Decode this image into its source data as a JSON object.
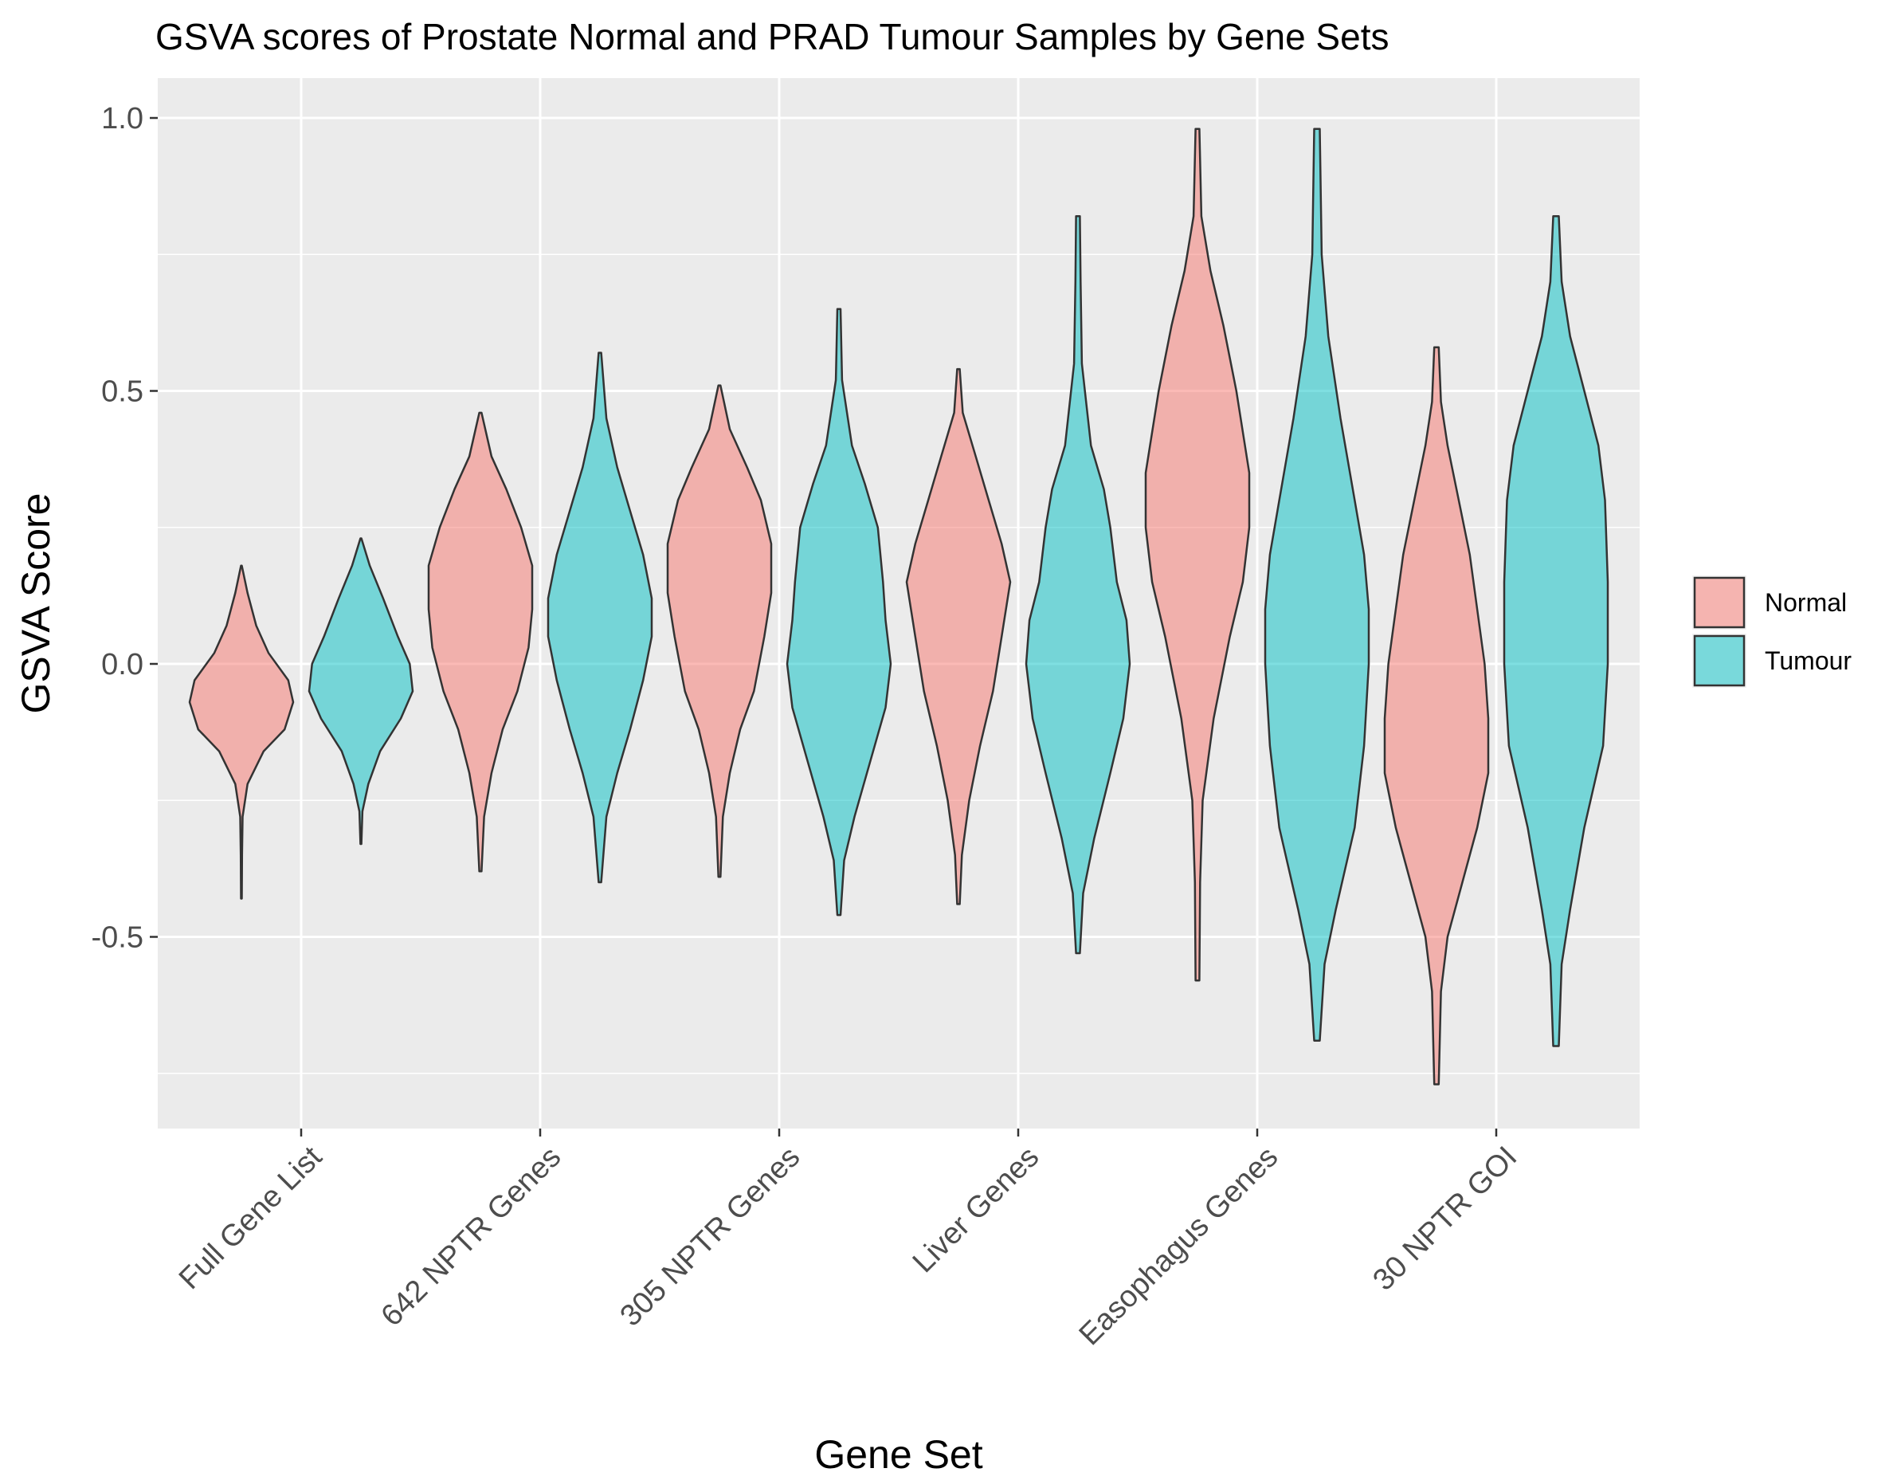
{
  "chart_data": {
    "type": "violin",
    "title": "GSVA scores of Prostate Normal and PRAD Tumour Samples by Gene Sets",
    "xlabel": "Gene Set",
    "ylabel": "GSVA Score",
    "ylim": [
      -0.86,
      1.06
    ],
    "yticks": [
      -0.5,
      0.0,
      0.5,
      1.0
    ],
    "ytick_labels": [
      "-0.5",
      "0.0",
      "0.5",
      "1.0"
    ],
    "grid": true,
    "legend_position": "right",
    "categories": [
      "Full Gene List",
      "642 NPTR Genes",
      "305 NPTR Genes",
      "Liver Genes",
      "Easophagus Genes",
      "30 NPTR GOI"
    ],
    "series": [
      {
        "name": "Normal",
        "color": "#F8766D",
        "violins": [
          {
            "min": -0.43,
            "max": 0.18,
            "profile": [
              [
                -0.43,
                0.003
              ],
              [
                -0.35,
                0.005
              ],
              [
                -0.28,
                0.01
              ],
              [
                -0.22,
                0.05
              ],
              [
                -0.16,
                0.18
              ],
              [
                -0.12,
                0.35
              ],
              [
                -0.07,
                0.42
              ],
              [
                -0.03,
                0.38
              ],
              [
                0.02,
                0.22
              ],
              [
                0.07,
                0.12
              ],
              [
                0.13,
                0.05
              ],
              [
                0.18,
                0.003
              ]
            ]
          },
          {
            "min": -0.38,
            "max": 0.46,
            "profile": [
              [
                -0.38,
                0.003
              ],
              [
                -0.28,
                0.01
              ],
              [
                -0.2,
                0.03
              ],
              [
                -0.12,
                0.06
              ],
              [
                -0.05,
                0.1
              ],
              [
                0.03,
                0.13
              ],
              [
                0.1,
                0.14
              ],
              [
                0.18,
                0.14
              ],
              [
                0.25,
                0.11
              ],
              [
                0.32,
                0.07
              ],
              [
                0.38,
                0.03
              ],
              [
                0.46,
                0.003
              ]
            ]
          },
          {
            "min": -0.39,
            "max": 0.51,
            "profile": [
              [
                -0.39,
                0.003
              ],
              [
                -0.28,
                0.01
              ],
              [
                -0.2,
                0.03
              ],
              [
                -0.12,
                0.06
              ],
              [
                -0.05,
                0.1
              ],
              [
                0.05,
                0.13
              ],
              [
                0.13,
                0.15
              ],
              [
                0.22,
                0.15
              ],
              [
                0.3,
                0.12
              ],
              [
                0.36,
                0.08
              ],
              [
                0.43,
                0.03
              ],
              [
                0.51,
                0.003
              ]
            ]
          },
          {
            "min": -0.44,
            "max": 0.54,
            "profile": [
              [
                -0.44,
                0.003
              ],
              [
                -0.35,
                0.008
              ],
              [
                -0.25,
                0.025
              ],
              [
                -0.15,
                0.05
              ],
              [
                -0.05,
                0.08
              ],
              [
                0.05,
                0.1
              ],
              [
                0.15,
                0.12
              ],
              [
                0.22,
                0.1
              ],
              [
                0.3,
                0.07
              ],
              [
                0.38,
                0.04
              ],
              [
                0.46,
                0.01
              ],
              [
                0.54,
                0.003
              ]
            ]
          },
          {
            "min": -0.58,
            "max": 0.98,
            "profile": [
              [
                -0.58,
                0.003
              ],
              [
                -0.4,
                0.004
              ],
              [
                -0.25,
                0.008
              ],
              [
                -0.1,
                0.025
              ],
              [
                0.05,
                0.05
              ],
              [
                0.15,
                0.07
              ],
              [
                0.25,
                0.08
              ],
              [
                0.35,
                0.08
              ],
              [
                0.5,
                0.06
              ],
              [
                0.62,
                0.04
              ],
              [
                0.72,
                0.02
              ],
              [
                0.82,
                0.006
              ],
              [
                0.98,
                0.003
              ]
            ]
          },
          {
            "min": -0.77,
            "max": 0.58,
            "profile": [
              [
                -0.77,
                0.003
              ],
              [
                -0.6,
                0.006
              ],
              [
                -0.5,
                0.015
              ],
              [
                -0.4,
                0.035
              ],
              [
                -0.3,
                0.055
              ],
              [
                -0.2,
                0.07
              ],
              [
                -0.1,
                0.07
              ],
              [
                0.0,
                0.065
              ],
              [
                0.1,
                0.055
              ],
              [
                0.2,
                0.045
              ],
              [
                0.3,
                0.03
              ],
              [
                0.4,
                0.015
              ],
              [
                0.48,
                0.006
              ],
              [
                0.58,
                0.003
              ]
            ]
          }
        ]
      },
      {
        "name": "Tumour",
        "color": "#00BFC4",
        "violins": [
          {
            "min": -0.33,
            "max": 0.23,
            "profile": [
              [
                -0.33,
                0.003
              ],
              [
                -0.27,
                0.01
              ],
              [
                -0.22,
                0.05
              ],
              [
                -0.16,
                0.13
              ],
              [
                -0.1,
                0.27
              ],
              [
                -0.05,
                0.35
              ],
              [
                0.0,
                0.33
              ],
              [
                0.05,
                0.25
              ],
              [
                0.12,
                0.15
              ],
              [
                0.18,
                0.06
              ],
              [
                0.23,
                0.003
              ]
            ]
          },
          {
            "min": -0.4,
            "max": 0.57,
            "profile": [
              [
                -0.4,
                0.003
              ],
              [
                -0.28,
                0.015
              ],
              [
                -0.2,
                0.04
              ],
              [
                -0.12,
                0.07
              ],
              [
                -0.03,
                0.1
              ],
              [
                0.05,
                0.12
              ],
              [
                0.12,
                0.12
              ],
              [
                0.2,
                0.1
              ],
              [
                0.28,
                0.07
              ],
              [
                0.36,
                0.04
              ],
              [
                0.45,
                0.015
              ],
              [
                0.57,
                0.003
              ]
            ]
          },
          {
            "min": -0.46,
            "max": 0.65,
            "profile": [
              [
                -0.46,
                0.003
              ],
              [
                -0.36,
                0.01
              ],
              [
                -0.28,
                0.03
              ],
              [
                -0.18,
                0.06
              ],
              [
                -0.08,
                0.09
              ],
              [
                0.0,
                0.1
              ],
              [
                0.08,
                0.09
              ],
              [
                0.15,
                0.085
              ],
              [
                0.25,
                0.075
              ],
              [
                0.33,
                0.05
              ],
              [
                0.4,
                0.025
              ],
              [
                0.52,
                0.006
              ],
              [
                0.65,
                0.003
              ]
            ]
          },
          {
            "min": -0.53,
            "max": 0.82,
            "profile": [
              [
                -0.53,
                0.003
              ],
              [
                -0.42,
                0.008
              ],
              [
                -0.32,
                0.025
              ],
              [
                -0.2,
                0.05
              ],
              [
                -0.1,
                0.07
              ],
              [
                0.0,
                0.08
              ],
              [
                0.08,
                0.075
              ],
              [
                0.15,
                0.06
              ],
              [
                0.25,
                0.05
              ],
              [
                0.32,
                0.04
              ],
              [
                0.4,
                0.02
              ],
              [
                0.55,
                0.006
              ],
              [
                0.7,
                0.004
              ],
              [
                0.82,
                0.003
              ]
            ]
          },
          {
            "min": -0.69,
            "max": 0.98,
            "profile": [
              [
                -0.69,
                0.003
              ],
              [
                -0.55,
                0.008
              ],
              [
                -0.45,
                0.02
              ],
              [
                -0.3,
                0.04
              ],
              [
                -0.15,
                0.05
              ],
              [
                0.0,
                0.055
              ],
              [
                0.1,
                0.055
              ],
              [
                0.2,
                0.05
              ],
              [
                0.3,
                0.04
              ],
              [
                0.45,
                0.025
              ],
              [
                0.6,
                0.012
              ],
              [
                0.75,
                0.005
              ],
              [
                0.98,
                0.003
              ]
            ]
          },
          {
            "min": -0.7,
            "max": 0.82,
            "profile": [
              [
                -0.7,
                0.003
              ],
              [
                -0.55,
                0.006
              ],
              [
                -0.45,
                0.015
              ],
              [
                -0.3,
                0.03
              ],
              [
                -0.15,
                0.05
              ],
              [
                0.0,
                0.055
              ],
              [
                0.15,
                0.055
              ],
              [
                0.3,
                0.052
              ],
              [
                0.4,
                0.045
              ],
              [
                0.5,
                0.03
              ],
              [
                0.6,
                0.015
              ],
              [
                0.7,
                0.006
              ],
              [
                0.82,
                0.003
              ]
            ]
          }
        ]
      }
    ]
  }
}
